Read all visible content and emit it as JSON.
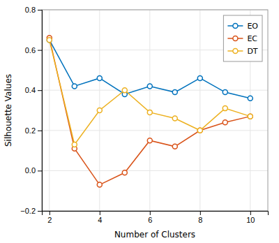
{
  "chart_data": {
    "type": "line",
    "xlabel": "Number of Clusters",
    "ylabel": "Silhouette Values",
    "x": [
      2,
      3,
      4,
      5,
      6,
      7,
      8,
      9,
      10
    ],
    "series": [
      {
        "name": "EO",
        "color": "#0072BD",
        "values": [
          0.65,
          0.42,
          0.46,
          0.38,
          0.42,
          0.39,
          0.46,
          0.39,
          0.36
        ]
      },
      {
        "name": "EC",
        "color": "#D95319",
        "values": [
          0.66,
          0.11,
          -0.07,
          -0.01,
          0.15,
          0.12,
          0.2,
          0.24,
          0.27
        ]
      },
      {
        "name": "DT",
        "color": "#EDB120",
        "values": [
          0.65,
          0.13,
          0.3,
          0.4,
          0.29,
          0.26,
          0.2,
          0.31,
          0.27
        ]
      }
    ],
    "xlim": [
      1.7,
      10.7
    ],
    "ylim": [
      -0.2,
      0.8
    ],
    "xticks": [
      2,
      4,
      6,
      8,
      10
    ],
    "yticks": [
      {
        "value": -0.2,
        "label": "−0.2"
      },
      {
        "value": 0.0,
        "label": "0.0"
      },
      0.2,
      0.4,
      0.6,
      0.8
    ],
    "marker": "o",
    "grid": true,
    "legend": "upper right"
  }
}
